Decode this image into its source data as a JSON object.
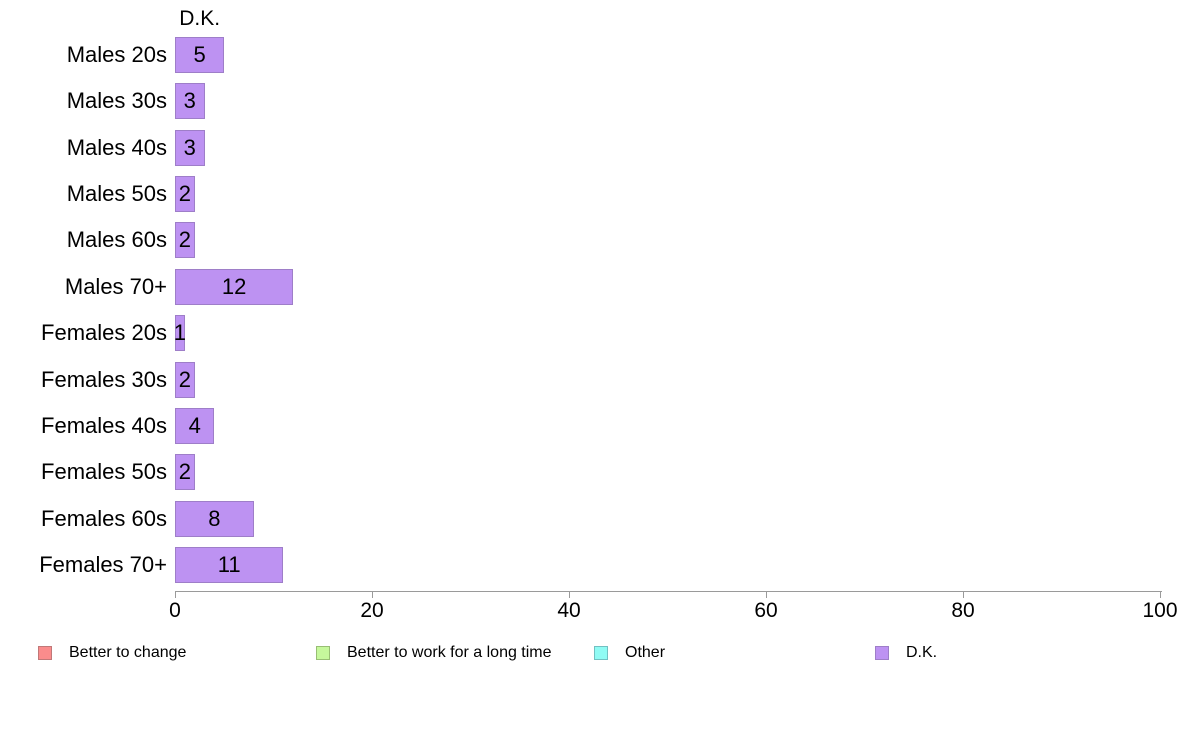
{
  "chart_data": {
    "type": "bar",
    "orientation": "horizontal",
    "title": "D.K.",
    "series_name": "D.K.",
    "categories": [
      "Males 20s",
      "Males 30s",
      "Males 40s",
      "Males 50s",
      "Males 60s",
      "Males 70+",
      "Females 20s",
      "Females 30s",
      "Females 40s",
      "Females 50s",
      "Females 60s",
      "Females 70+"
    ],
    "values": [
      5,
      3,
      3,
      2,
      2,
      12,
      1,
      2,
      4,
      2,
      8,
      11
    ],
    "value_labels_shown": true,
    "xlabel": "",
    "ylabel": "",
    "xlim": [
      0,
      100
    ],
    "x_ticks": [
      0,
      20,
      40,
      60,
      80,
      100
    ],
    "grid": false,
    "legend_position": "bottom",
    "bar_color": "#BD92F2",
    "bar_border_color": "#9E7EC8",
    "axis_color": "#9a9a9a",
    "text_color": "#000000"
  },
  "legend": {
    "items": [
      {
        "label": "Better to change",
        "color": "#FA8C8C",
        "border_color": "#C07878"
      },
      {
        "label": "Better to work for a long time",
        "color": "#C6F89C",
        "border_color": "#98BE74"
      },
      {
        "label": "Other",
        "color": "#90FBF4",
        "border_color": "#72C0C2"
      },
      {
        "label": "D.K.",
        "color": "#BD92F2",
        "border_color": "#9E7EC8"
      }
    ]
  }
}
